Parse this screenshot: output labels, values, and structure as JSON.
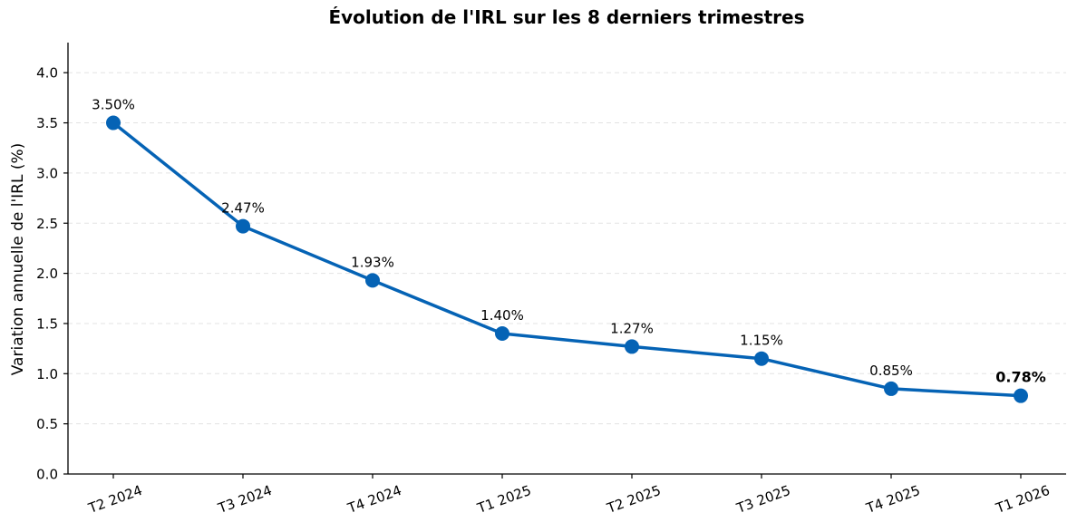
{
  "chart_data": {
    "type": "line",
    "title": "Évolution de l'IRL sur les 8 derniers trimestres",
    "xlabel": "",
    "ylabel": "Variation annuelle de l'IRL (%)",
    "categories": [
      "T2 2024",
      "T3 2024",
      "T4 2024",
      "T1 2025",
      "T2 2025",
      "T3 2025",
      "T4 2025",
      "T1 2026"
    ],
    "series": [
      {
        "values": [
          3.5,
          2.47,
          1.93,
          1.4,
          1.27,
          1.15,
          0.85,
          0.78
        ]
      }
    ],
    "data_labels": [
      "3.50%",
      "2.47%",
      "1.93%",
      "1.40%",
      "1.27%",
      "1.15%",
      "0.85%",
      "0.78%"
    ],
    "highlighted_label_index": 7,
    "ylim": [
      0,
      4.3
    ],
    "yticks": [
      "0.0",
      "0.5",
      "1.0",
      "1.5",
      "2.0",
      "2.5",
      "3.0",
      "3.5",
      "4.0"
    ],
    "ytick_values": [
      0,
      0.5,
      1.0,
      1.5,
      2.0,
      2.5,
      3.0,
      3.5,
      4.0
    ],
    "grid": "horizontal dashed",
    "line_color": "#0563b5",
    "grid_color": "#e3e3e3"
  }
}
